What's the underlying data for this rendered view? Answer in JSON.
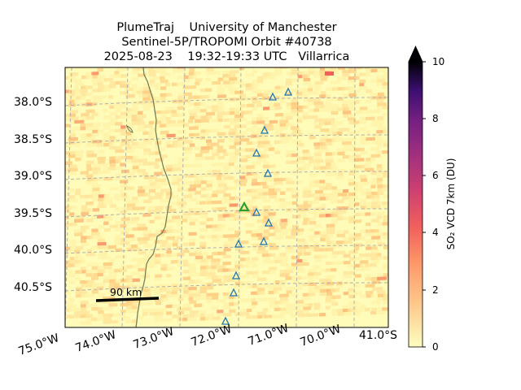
{
  "title": {
    "line1": "PlumeTraj    University of Manchester",
    "line2": "Sentinel-5P/TROPOMI Orbit #40738",
    "line3": "2025-08-23    19:32-19:33 UTC   Villarrica"
  },
  "map": {
    "lat_labels": [
      "38.0°S",
      "38.5°S",
      "39.0°S",
      "39.5°S",
      "40.0°S",
      "40.5°S"
    ],
    "lon_labels": [
      "75.0°W",
      "74.0°W",
      "73.0°W",
      "72.0°W",
      "71.0°W",
      "70.0°W"
    ],
    "corner_label": "41.0°S",
    "scale_bar_label": "90 km",
    "target_volcano": "Villarrica",
    "colors": {
      "background": "#fffbb8",
      "target_marker": "#2ca02c",
      "volcano_marker": "#1f77b4",
      "coast": "#6b7a55"
    }
  },
  "colorbar": {
    "label": "SO₂ VCD 7km (DU)",
    "ticks": [
      "0",
      "2",
      "4",
      "6",
      "8",
      "10"
    ],
    "min": 0,
    "max": 10,
    "colormap": "magma_r",
    "extend": "max"
  }
}
